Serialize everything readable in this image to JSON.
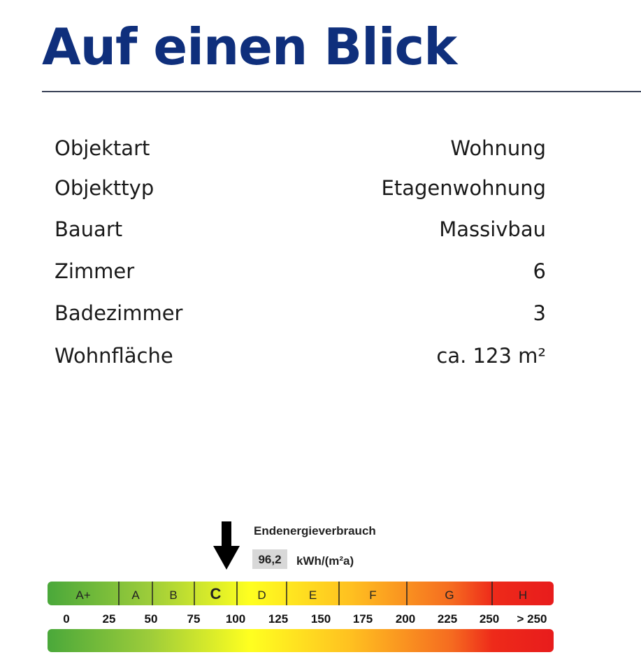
{
  "header": {
    "title": "Auf einen Blick"
  },
  "details": [
    {
      "label": "Objektart",
      "value": "Wohnung"
    },
    {
      "label": "Objekttyp",
      "value": "Etagenwohnung"
    },
    {
      "label": "Bauart",
      "value": "Massivbau"
    },
    {
      "label": "Zimmer",
      "value": "6"
    },
    {
      "label": "Badezimmer",
      "value": "3"
    },
    {
      "label": "Wohnfläche",
      "value": "ca. 123 m²"
    }
  ],
  "energy": {
    "title": "Endenergieverbrauch",
    "value": "96,2",
    "unit": "kWh/(m²a)",
    "current_class": "C",
    "classes": [
      "A+",
      "A",
      "B",
      "C",
      "D",
      "E",
      "F",
      "G",
      "H"
    ],
    "scale": [
      "0",
      "25",
      "50",
      "75",
      "100",
      "125",
      "150",
      "175",
      "200",
      "225",
      "250",
      "> 250"
    ]
  }
}
